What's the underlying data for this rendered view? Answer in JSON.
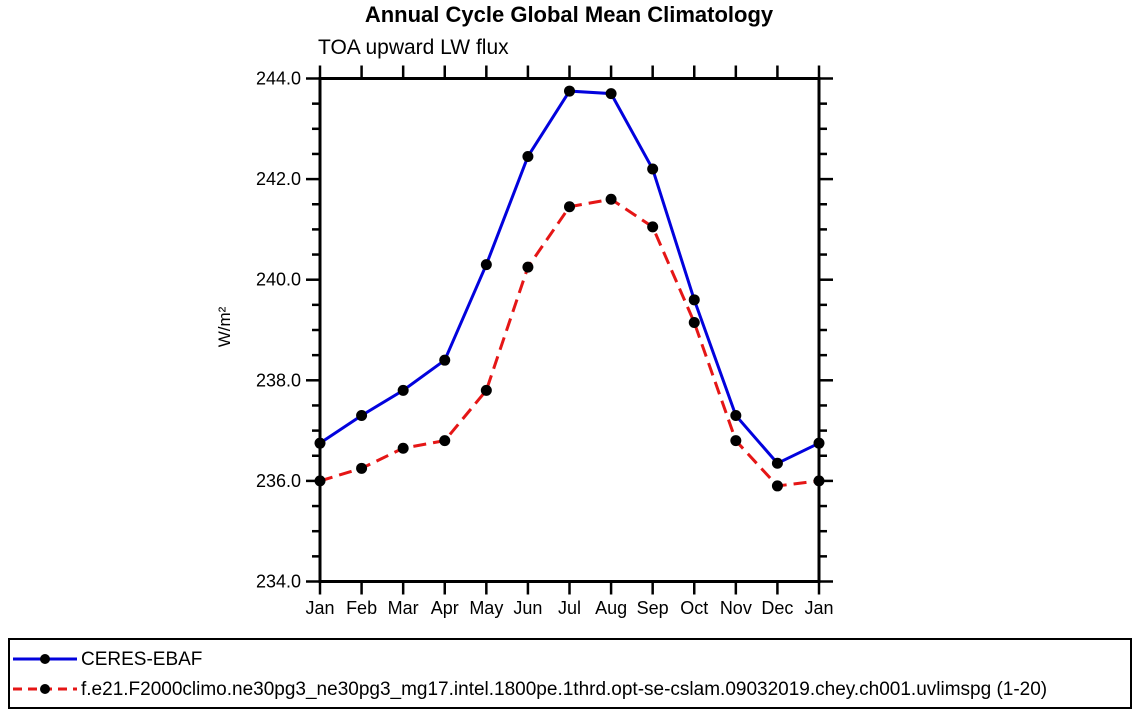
{
  "chart_data": {
    "type": "line",
    "title": "Annual Cycle Global Mean Climatology",
    "subtitle": "TOA upward LW flux",
    "ylabel": "W/m²",
    "xlabel": "",
    "categories": [
      "Jan",
      "Feb",
      "Mar",
      "Apr",
      "May",
      "Jun",
      "Jul",
      "Aug",
      "Sep",
      "Oct",
      "Nov",
      "Dec",
      "Jan"
    ],
    "series": [
      {
        "name": "CERES-EBAF",
        "color": "#0202dd",
        "line_style": "solid",
        "marker": "circle",
        "marker_color": "#000000",
        "values": [
          236.75,
          237.3,
          237.8,
          238.4,
          240.3,
          242.45,
          243.75,
          243.7,
          242.2,
          239.6,
          237.3,
          236.35,
          236.75
        ]
      },
      {
        "name": "f.e21.F2000climo.ne30pg3_ne30pg3_mg17.intel.1800pe.1thrd.opt-se-cslam.09032019.chey.ch001.uvlimspg (1-20)",
        "color": "#e51616",
        "line_style": "dashed",
        "marker": "circle",
        "marker_color": "#000000",
        "values": [
          236.0,
          236.25,
          236.65,
          236.8,
          237.8,
          240.25,
          241.45,
          241.6,
          241.05,
          239.15,
          236.8,
          235.9,
          236.0
        ]
      }
    ],
    "ylim": [
      234.0,
      244.0
    ],
    "ytick_interval_major": 2.0,
    "ytick_interval_minor": 0.5,
    "ytick_labels": [
      "234.0",
      "236.0",
      "238.0",
      "240.0",
      "242.0",
      "244.0"
    ],
    "grid": false,
    "axis_color": "#000000",
    "legend_position": "bottom-full-width-box"
  }
}
